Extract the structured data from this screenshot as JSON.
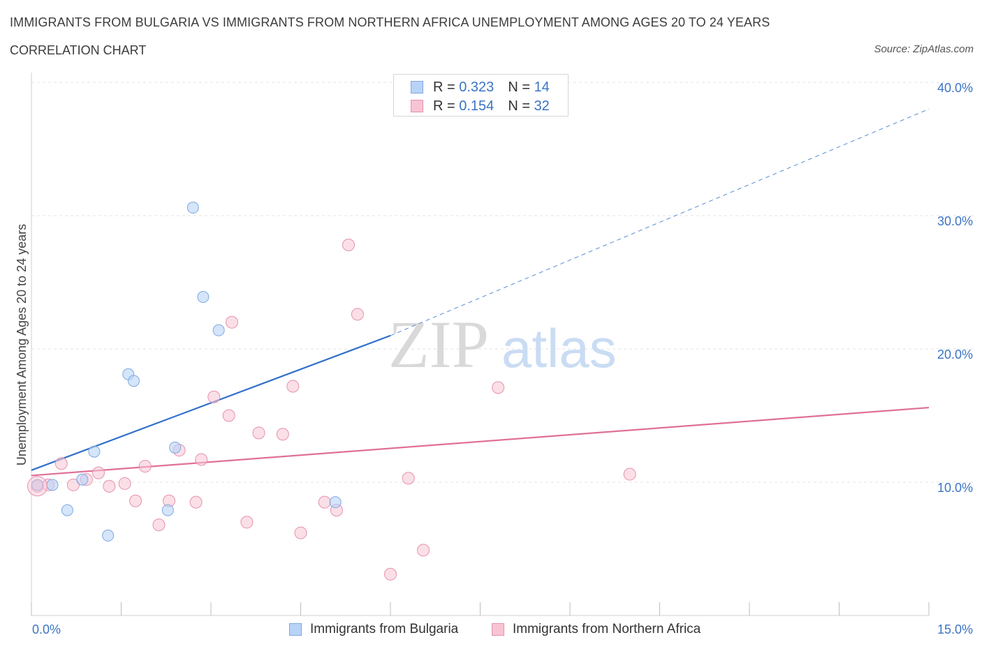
{
  "header": {
    "title": "IMMIGRANTS FROM BULGARIA VS IMMIGRANTS FROM NORTHERN AFRICA UNEMPLOYMENT AMONG AGES 20 TO 24 YEARS",
    "subtitle": "CORRELATION CHART",
    "source": "Source: ZipAtlas.com"
  },
  "watermark": {
    "zip": "ZIP",
    "atlas": "atlas"
  },
  "legend": {
    "r_label": "R =",
    "n_label": "N =",
    "rows": [
      {
        "r": "0.323",
        "n": "14"
      },
      {
        "r": "0.154",
        "n": "32"
      }
    ]
  },
  "colors": {
    "bulgaria_fill": "#b9d3f7",
    "bulgaria_stroke": "#7ea8e0",
    "bulgaria_line": "#2f6fcc",
    "nafrica_fill": "#f8c4d4",
    "nafrica_stroke": "#e691ad",
    "nafrica_line": "#e07098",
    "tick": "#3b74c5",
    "grid": "#e3e3e3"
  },
  "chart_data": {
    "type": "scatter",
    "xlabel": "",
    "ylabel": "Unemployment Among Ages 20 to 24 years",
    "xlim": [
      0,
      15
    ],
    "ylim": [
      0,
      40
    ],
    "x_tick_labels": [
      "0.0%",
      "15.0%"
    ],
    "y_ticks": [
      10,
      20,
      30,
      40
    ],
    "y_tick_labels": [
      "10.0%",
      "20.0%",
      "30.0%",
      "40.0%"
    ],
    "grid": true,
    "legend_position": "top-center",
    "series": [
      {
        "name": "Immigrants from Bulgaria",
        "points": [
          [
            0.1,
            9.8
          ],
          [
            0.35,
            9.8
          ],
          [
            0.6,
            7.9
          ],
          [
            0.85,
            10.2
          ],
          [
            1.05,
            12.3
          ],
          [
            1.28,
            6.0
          ],
          [
            1.62,
            18.1
          ],
          [
            1.71,
            17.6
          ],
          [
            2.28,
            7.9
          ],
          [
            2.4,
            12.6
          ],
          [
            2.7,
            30.6
          ],
          [
            2.87,
            23.9
          ],
          [
            3.13,
            21.4
          ],
          [
            5.08,
            8.5
          ]
        ],
        "trend": {
          "x0": 0.0,
          "y0": 10.9,
          "x1": 6.0,
          "y1": 21.0,
          "dashed_to_x": 15.0,
          "dashed_to_y": 38.0
        }
      },
      {
        "name": "Immigrants from Northern Africa",
        "points": [
          [
            0.1,
            9.7
          ],
          [
            0.28,
            9.8
          ],
          [
            0.5,
            11.4
          ],
          [
            0.7,
            9.8
          ],
          [
            0.92,
            10.2
          ],
          [
            1.12,
            10.7
          ],
          [
            1.3,
            9.7
          ],
          [
            1.56,
            9.9
          ],
          [
            1.74,
            8.6
          ],
          [
            1.9,
            11.2
          ],
          [
            2.13,
            6.8
          ],
          [
            2.3,
            8.6
          ],
          [
            2.47,
            12.4
          ],
          [
            2.75,
            8.5
          ],
          [
            2.84,
            11.7
          ],
          [
            3.05,
            16.4
          ],
          [
            3.3,
            15.0
          ],
          [
            3.35,
            22.0
          ],
          [
            3.6,
            7.0
          ],
          [
            3.8,
            13.7
          ],
          [
            4.2,
            13.6
          ],
          [
            4.37,
            17.2
          ],
          [
            4.5,
            6.2
          ],
          [
            4.9,
            8.5
          ],
          [
            5.1,
            7.9
          ],
          [
            5.3,
            27.8
          ],
          [
            5.45,
            22.6
          ],
          [
            6.0,
            3.1
          ],
          [
            6.3,
            10.3
          ],
          [
            6.55,
            4.9
          ],
          [
            7.8,
            17.1
          ],
          [
            10.0,
            10.6
          ]
        ],
        "trend": {
          "x0": 0.0,
          "y0": 10.5,
          "x1": 15.0,
          "y1": 15.6
        }
      }
    ]
  }
}
